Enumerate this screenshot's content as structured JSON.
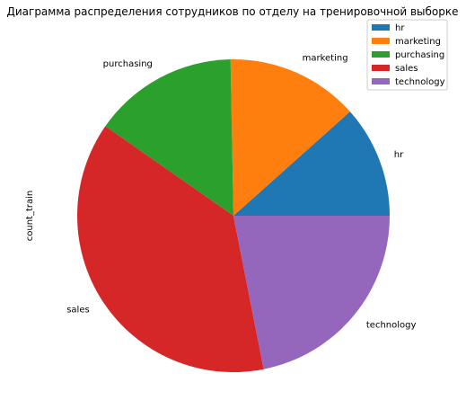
{
  "chart_data": {
    "type": "pie",
    "title": "Диаграмма распределения сотрудников по отделу на тренировочной выборке",
    "ylabel": "count_train",
    "xlabel": "",
    "start_angle_deg": 0,
    "direction": "counterclockwise",
    "legend_position": "top-right",
    "categories": [
      "hr",
      "marketing",
      "purchasing",
      "sales",
      "technology"
    ],
    "values": [
      11.6,
      13.7,
      15.0,
      37.8,
      21.9
    ],
    "colors": [
      "#1f77b4",
      "#ff7f0e",
      "#2ca02c",
      "#d62728",
      "#9467bd"
    ]
  }
}
